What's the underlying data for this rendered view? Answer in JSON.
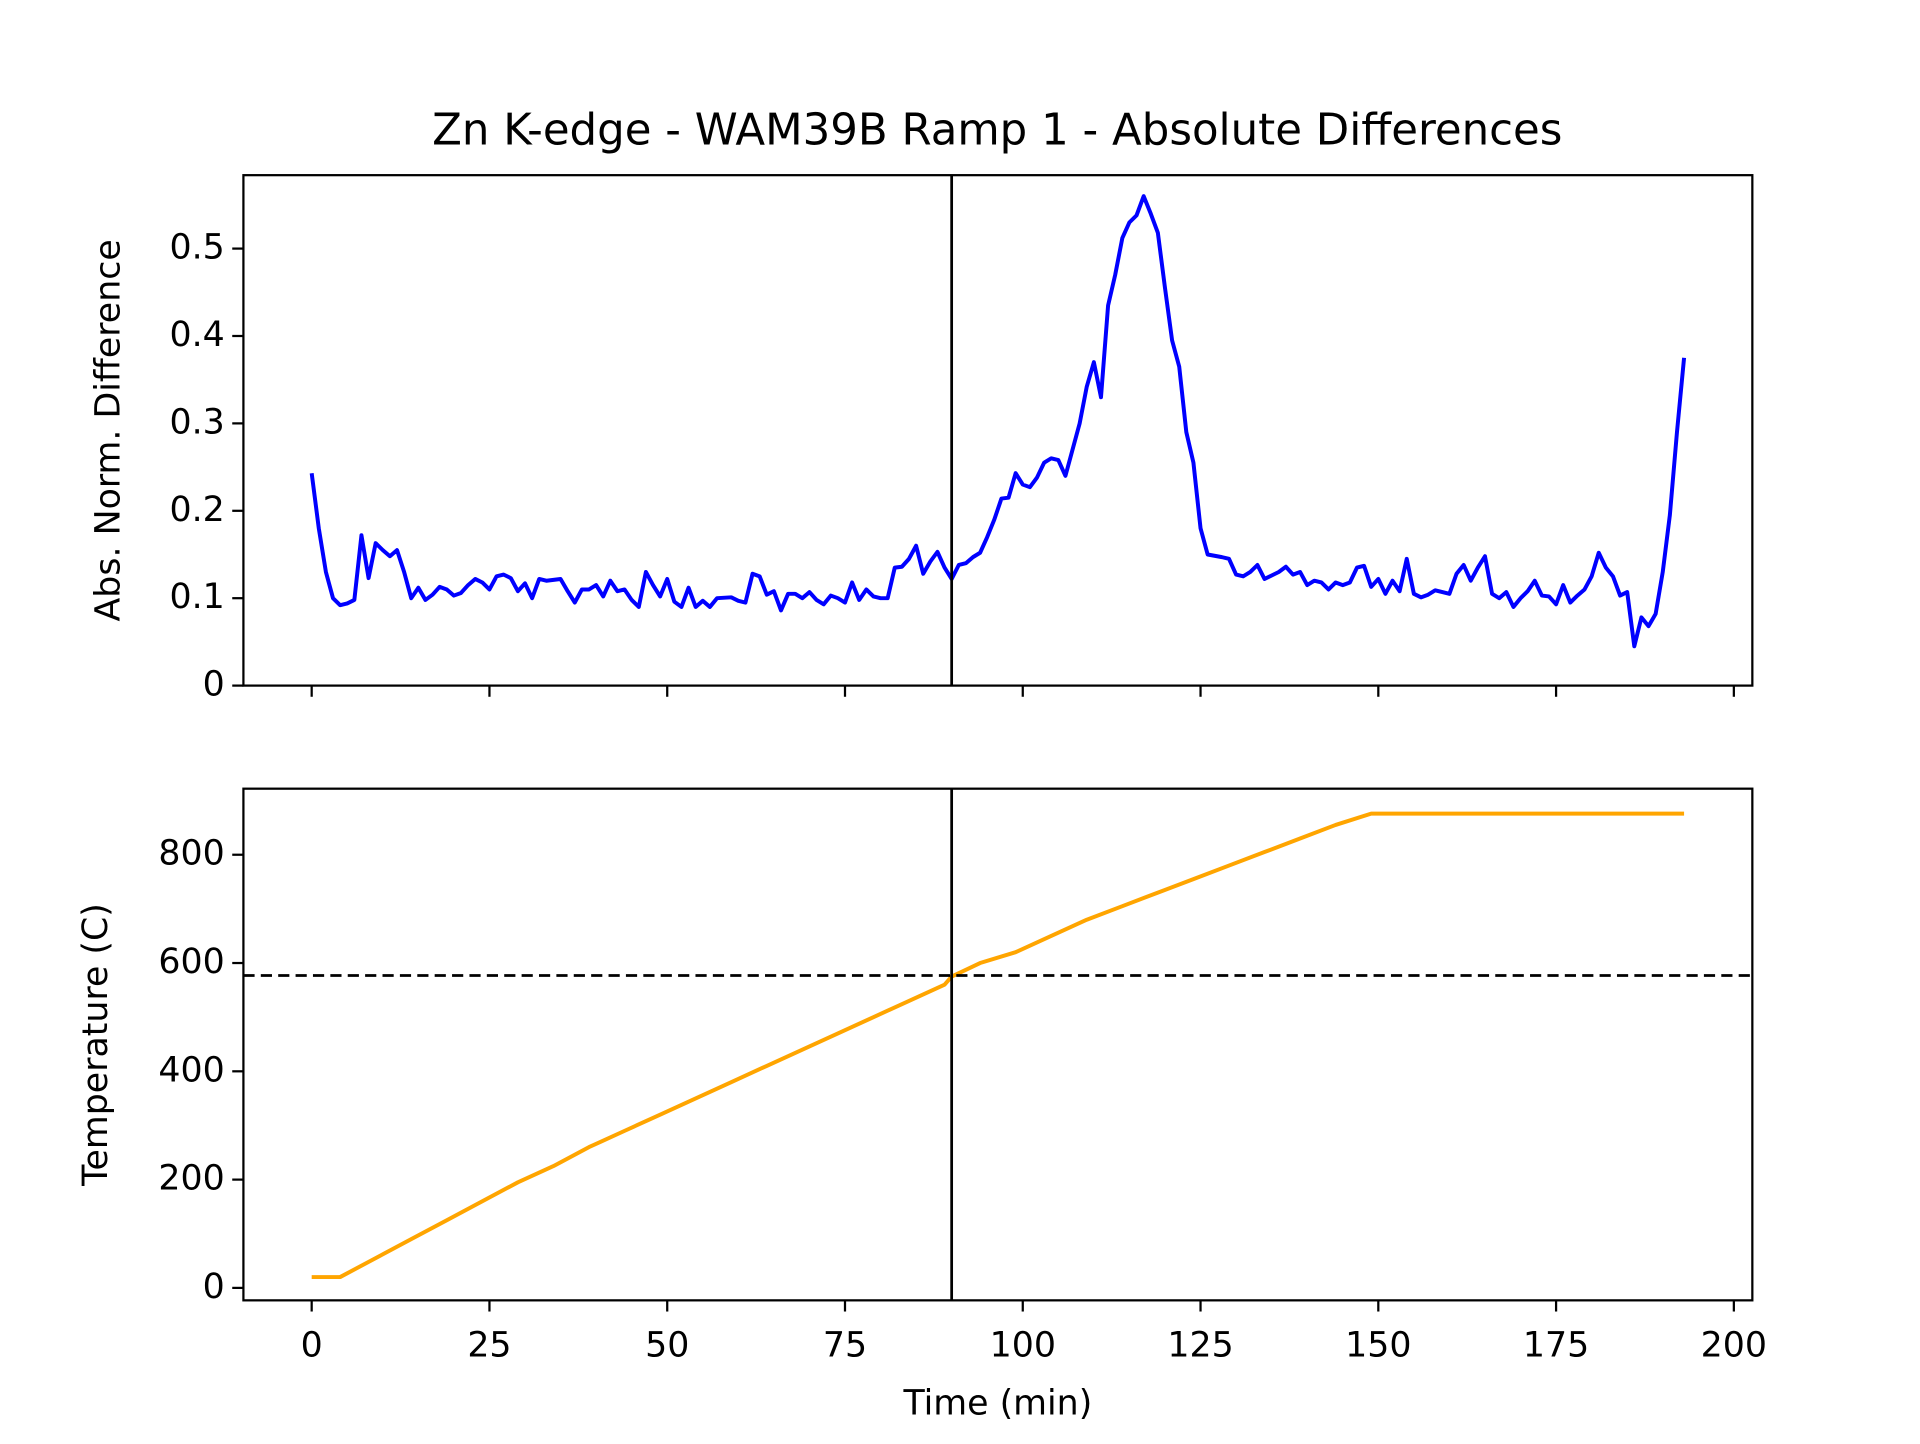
{
  "chart_data": [
    {
      "type": "line",
      "title": "Zn K-edge - WAM39B Ramp 1 - Absolute Differences",
      "y_label": "Abs. Norm. Difference",
      "x": [
        0,
        1,
        2,
        3,
        4,
        5,
        6,
        7,
        8,
        9,
        10,
        11,
        12,
        13,
        14,
        15,
        16,
        17,
        18,
        19,
        20,
        21,
        22,
        23,
        24,
        25,
        26,
        27,
        28,
        29,
        30,
        31,
        32,
        33,
        35,
        36,
        37,
        38,
        39,
        40,
        41,
        42,
        43,
        44,
        45,
        46,
        47,
        48,
        49,
        50,
        51,
        52,
        53,
        54,
        55,
        56,
        57,
        59,
        60,
        61,
        62,
        63,
        64,
        65,
        66,
        67,
        68,
        69,
        70,
        71,
        72,
        73,
        74,
        75,
        76,
        77,
        78,
        79,
        80,
        81,
        82,
        83,
        84,
        85,
        86,
        87,
        88,
        89,
        90,
        91,
        92,
        93,
        94,
        95,
        96,
        97,
        98,
        99,
        100,
        101,
        102,
        103,
        104,
        105,
        106,
        107,
        108,
        109,
        110,
        111,
        112,
        113,
        114,
        115,
        116,
        117,
        118,
        119,
        120,
        121,
        122,
        123,
        124,
        125,
        126,
        128,
        129,
        130,
        131,
        132,
        133,
        134,
        135,
        136,
        137,
        138,
        139,
        140,
        141,
        142,
        143,
        144,
        145,
        146,
        147,
        148,
        149,
        150,
        151,
        152,
        153,
        154,
        155,
        156,
        157,
        158,
        159,
        160,
        161,
        162,
        163,
        164,
        165,
        166,
        167,
        168,
        169,
        170,
        171,
        172,
        173,
        174,
        175,
        176,
        177,
        178,
        179,
        180,
        181,
        182,
        183,
        184,
        185,
        186,
        187,
        188,
        189,
        190,
        191,
        192,
        193
      ],
      "series": [
        {
          "color": "#0000ff",
          "values": [
            0.243,
            0.18,
            0.13,
            0.1,
            0.092,
            0.094,
            0.098,
            0.172,
            0.123,
            0.163,
            0.155,
            0.148,
            0.155,
            0.13,
            0.1,
            0.112,
            0.098,
            0.104,
            0.113,
            0.11,
            0.103,
            0.106,
            0.115,
            0.122,
            0.118,
            0.11,
            0.125,
            0.127,
            0.123,
            0.108,
            0.117,
            0.1,
            0.122,
            0.12,
            0.122,
            0.108,
            0.095,
            0.11,
            0.11,
            0.115,
            0.102,
            0.12,
            0.108,
            0.11,
            0.098,
            0.09,
            0.13,
            0.115,
            0.102,
            0.122,
            0.096,
            0.09,
            0.112,
            0.09,
            0.097,
            0.09,
            0.1,
            0.101,
            0.097,
            0.095,
            0.128,
            0.125,
            0.104,
            0.108,
            0.086,
            0.105,
            0.105,
            0.1,
            0.107,
            0.098,
            0.093,
            0.103,
            0.1,
            0.095,
            0.118,
            0.098,
            0.11,
            0.102,
            0.1,
            0.1,
            0.135,
            0.136,
            0.145,
            0.16,
            0.128,
            0.142,
            0.153,
            0.135,
            0.122,
            0.138,
            0.14,
            0.147,
            0.152,
            0.17,
            0.19,
            0.214,
            0.215,
            0.243,
            0.23,
            0.227,
            0.238,
            0.255,
            0.26,
            0.258,
            0.24,
            0.27,
            0.3,
            0.342,
            0.37,
            0.33,
            0.435,
            0.47,
            0.512,
            0.53,
            0.538,
            0.56,
            0.54,
            0.518,
            0.455,
            0.395,
            0.365,
            0.29,
            0.255,
            0.18,
            0.15,
            0.147,
            0.145,
            0.127,
            0.125,
            0.13,
            0.138,
            0.122,
            0.126,
            0.13,
            0.136,
            0.127,
            0.13,
            0.115,
            0.12,
            0.118,
            0.11,
            0.118,
            0.115,
            0.118,
            0.135,
            0.137,
            0.113,
            0.122,
            0.105,
            0.12,
            0.108,
            0.145,
            0.105,
            0.101,
            0.104,
            0.109,
            0.107,
            0.105,
            0.128,
            0.138,
            0.12,
            0.135,
            0.148,
            0.105,
            0.1,
            0.107,
            0.09,
            0.1,
            0.108,
            0.12,
            0.103,
            0.102,
            0.093,
            0.115,
            0.095,
            0.103,
            0.11,
            0.125,
            0.152,
            0.135,
            0.125,
            0.103,
            0.107,
            0.045,
            0.078,
            0.068,
            0.082,
            0.13,
            0.195,
            0.29,
            0.375
          ]
        }
      ],
      "xlim": [
        -9.6,
        202.6
      ],
      "xticks": [
        0,
        25,
        50,
        75,
        100,
        125,
        150,
        175,
        200
      ],
      "ylim": [
        0,
        0.584
      ],
      "yticks": [
        0.0,
        0.1,
        0.2,
        0.3,
        0.4,
        0.5
      ],
      "vlines": [
        90
      ]
    },
    {
      "type": "line",
      "y_label": "Temperature (C)",
      "x_label": "Time (min)",
      "x": [
        0,
        4,
        9,
        14,
        19,
        24,
        29,
        34,
        39,
        44,
        49,
        54,
        59,
        64,
        69,
        74,
        79,
        84,
        89,
        90,
        94,
        99,
        104,
        109,
        114,
        119,
        124,
        129,
        134,
        139,
        144,
        149,
        193
      ],
      "series": [
        {
          "color": "#ffa500",
          "values": [
            20,
            20,
            55,
            90,
            125,
            160,
            195,
            225,
            260,
            290,
            320,
            350,
            380,
            410,
            440,
            470,
            500,
            530,
            560,
            575,
            600,
            620,
            650,
            680,
            705,
            730,
            755,
            780,
            805,
            830,
            855,
            876,
            876
          ]
        }
      ],
      "xlim": [
        -9.6,
        202.6
      ],
      "xticks": [
        0,
        25,
        50,
        75,
        100,
        125,
        150,
        175,
        200
      ],
      "ylim": [
        -23,
        922
      ],
      "yticks": [
        0,
        200,
        400,
        600,
        800
      ],
      "vlines": [
        90
      ],
      "hlines": [
        577
      ]
    }
  ]
}
